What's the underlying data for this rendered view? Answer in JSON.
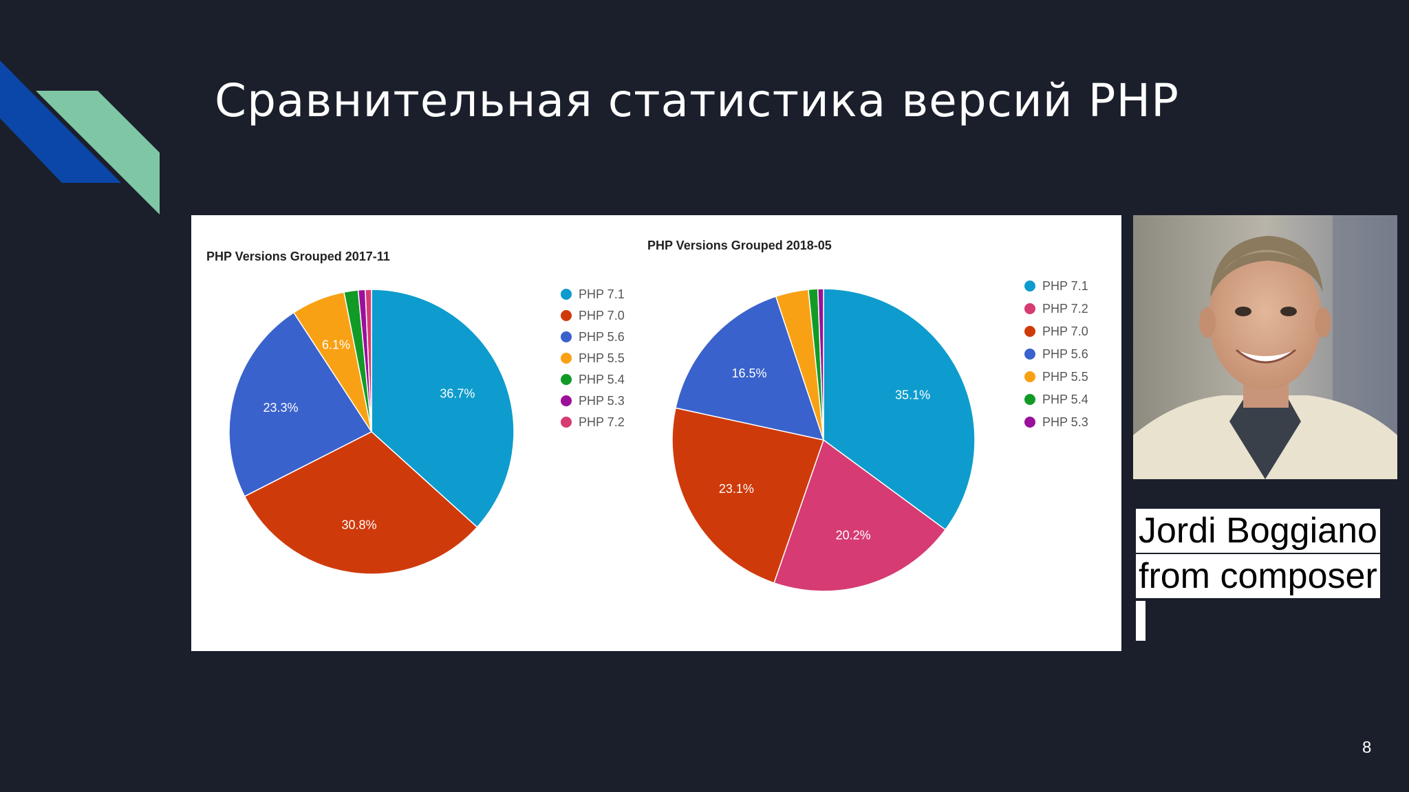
{
  "slide": {
    "title": "Сравнительная статистика версий PHP",
    "page_number": "8"
  },
  "caption": {
    "line1": "Jordi Boggiano",
    "line2": "from composer"
  },
  "photo": {
    "icon": "person-photo"
  },
  "colors": {
    "background": "#1b1f2b",
    "deco_blue": "#0b47a8",
    "deco_green": "#7fc6a4"
  },
  "chart_data": [
    {
      "type": "pie",
      "title": "PHP Versions Grouped 2017-11",
      "slices": [
        {
          "name": "PHP 7.1",
          "value": 36.7,
          "label": "36.7%",
          "color": "#0d9ccd"
        },
        {
          "name": "PHP 7.0",
          "value": 30.8,
          "label": "30.8%",
          "color": "#cf3a0b"
        },
        {
          "name": "PHP 5.6",
          "value": 23.3,
          "label": "23.3%",
          "color": "#3a62cc"
        },
        {
          "name": "PHP 5.5",
          "value": 6.1,
          "label": "6.1%",
          "color": "#f9a114"
        },
        {
          "name": "PHP 5.4",
          "value": 1.6,
          "label": "",
          "color": "#119b26"
        },
        {
          "name": "PHP 5.3",
          "value": 0.8,
          "label": "",
          "color": "#9b109b"
        },
        {
          "name": "PHP 7.2",
          "value": 0.7,
          "label": "",
          "color": "#d63b73"
        }
      ],
      "legend": [
        "PHP 7.1",
        "PHP 7.0",
        "PHP 5.6",
        "PHP 5.5",
        "PHP 5.4",
        "PHP 5.3",
        "PHP 7.2"
      ],
      "legend_position": "right"
    },
    {
      "type": "pie",
      "title": "PHP Versions Grouped 2018-05",
      "slices": [
        {
          "name": "PHP 7.1",
          "value": 35.1,
          "label": "35.1%",
          "color": "#0d9ccd"
        },
        {
          "name": "PHP 7.2",
          "value": 20.2,
          "label": "20.2%",
          "color": "#d63b73"
        },
        {
          "name": "PHP 7.0",
          "value": 23.1,
          "label": "23.1%",
          "color": "#cf3a0b"
        },
        {
          "name": "PHP 5.6",
          "value": 16.5,
          "label": "16.5%",
          "color": "#3a62cc"
        },
        {
          "name": "PHP 5.5",
          "value": 3.5,
          "label": "",
          "color": "#f9a114"
        },
        {
          "name": "PHP 5.4",
          "value": 1.0,
          "label": "",
          "color": "#119b26"
        },
        {
          "name": "PHP 5.3",
          "value": 0.6,
          "label": "",
          "color": "#9b109b"
        }
      ],
      "legend": [
        "PHP 7.1",
        "PHP 7.2",
        "PHP 7.0",
        "PHP 5.6",
        "PHP 5.5",
        "PHP 5.4",
        "PHP 5.3"
      ],
      "legend_position": "right"
    }
  ]
}
